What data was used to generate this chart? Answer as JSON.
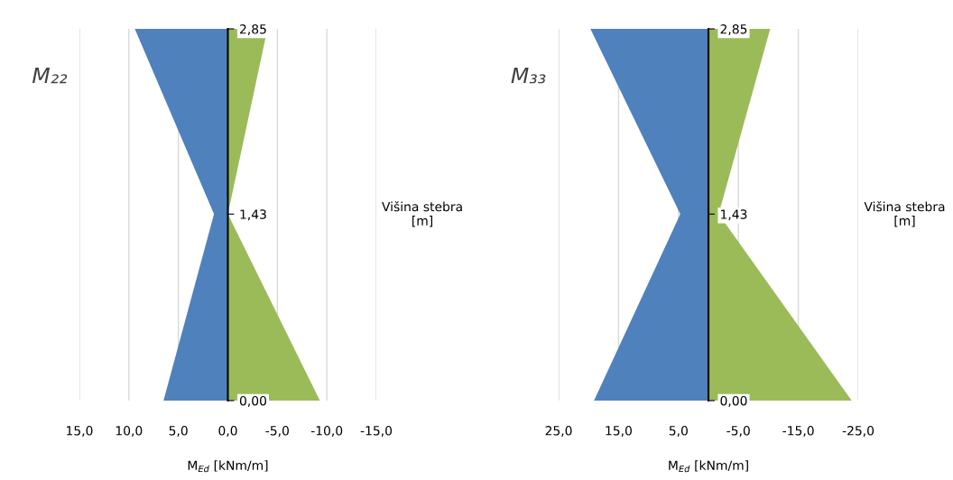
{
  "chart_data": [
    {
      "type": "area",
      "orientation": "horizontal",
      "title": "M₂₂",
      "xlabel": "M$_{Ed}$ [kNm/m]",
      "ylabel": "Višina stebra\n[m]",
      "x": [
        0,
        1.43,
        2.85
      ],
      "series": [
        {
          "color": "#4f81bd",
          "values": [
            6.5,
            1.4,
            9.4
          ]
        },
        {
          "color": "#9bbb59",
          "values": [
            -9.3,
            0,
            -4.0
          ]
        }
      ],
      "xlim": [
        15,
        -15
      ],
      "xticks": [
        {
          "value": 15,
          "label": "15,0"
        },
        {
          "value": 10,
          "label": "10,0"
        },
        {
          "value": 5,
          "label": "5,0"
        },
        {
          "value": 0,
          "label": "0,0"
        },
        {
          "value": -5,
          "label": "-5,0"
        },
        {
          "value": -10,
          "label": "-10,0"
        },
        {
          "value": -15,
          "label": "-15,0"
        }
      ],
      "ylim": [
        0,
        2.85
      ],
      "yticks": [
        {
          "value": 0,
          "label": "0,00"
        },
        {
          "value": 1.43,
          "label": "1,43"
        },
        {
          "value": 2.85,
          "label": "2,85"
        }
      ],
      "grid": "x",
      "legend": false
    },
    {
      "type": "area",
      "orientation": "horizontal",
      "title": "M₃₃",
      "xlabel": "M$_{Ed}$ [kNm/m]",
      "ylabel": "Višina stebra\n[m]",
      "x": [
        0,
        1.43,
        2.85
      ],
      "series": [
        {
          "color": "#4f81bd",
          "values": [
            19.1,
            4.7,
            19.7
          ]
        },
        {
          "color": "#9bbb59",
          "values": [
            -23.9,
            -1.7,
            -10.3
          ]
        }
      ],
      "xlim": [
        25,
        -25
      ],
      "xticks": [
        {
          "value": 25,
          "label": "25,0"
        },
        {
          "value": 15,
          "label": "15,0"
        },
        {
          "value": 5,
          "label": "5,0"
        },
        {
          "value": -5,
          "label": "-5,0"
        },
        {
          "value": -15,
          "label": "-15,0"
        },
        {
          "value": -25,
          "label": "-25,0"
        }
      ],
      "ylim": [
        0,
        2.85
      ],
      "yticks": [
        {
          "value": 0,
          "label": "0,00"
        },
        {
          "value": 1.43,
          "label": "1,43"
        },
        {
          "value": 2.85,
          "label": "2,85"
        }
      ],
      "grid": "x",
      "legend": false
    }
  ]
}
